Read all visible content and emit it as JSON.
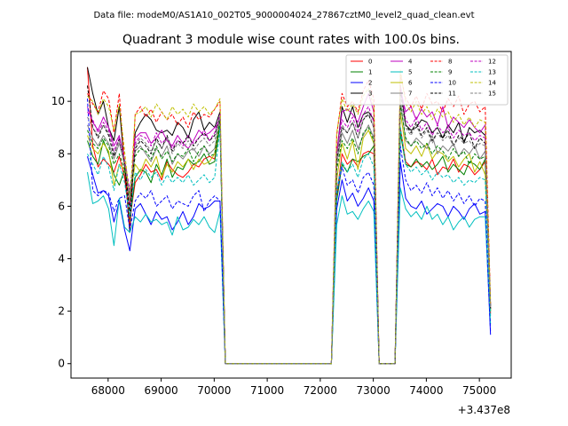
{
  "suptitle": "Data file: modeM0/AS1A10_002T05_9000004024_27867cztM0_level2_quad_clean.evt",
  "chart_data": {
    "type": "line",
    "title": "Quadrant 3 module wise count rates with 100.0s bins.",
    "xlabel": "",
    "ylabel": "",
    "x_offset_label": "+3.437e8",
    "xlim": [
      67300,
      75600
    ],
    "ylim": [
      -0.55,
      11.9
    ],
    "xticks": [
      68000,
      69000,
      70000,
      71000,
      72000,
      73000,
      74000,
      75000
    ],
    "yticks": [
      0,
      2,
      4,
      6,
      8,
      10
    ],
    "legend_position": "top-right",
    "x": [
      67610,
      67710,
      67810,
      67910,
      68010,
      68110,
      68210,
      68310,
      68410,
      68510,
      68610,
      68710,
      68810,
      68910,
      69010,
      69110,
      69210,
      69310,
      69410,
      69510,
      69610,
      69710,
      69810,
      69910,
      70010,
      70110,
      70210,
      70310,
      70410,
      72210,
      72310,
      72410,
      72510,
      72610,
      72710,
      72810,
      72910,
      73010,
      73110,
      73210,
      73310,
      73410,
      73510,
      73610,
      73710,
      73810,
      73910,
      74010,
      74110,
      74210,
      74310,
      74410,
      74510,
      74610,
      74710,
      74810,
      74910,
      75010,
      75110,
      75210
    ],
    "series": [
      {
        "name": "0",
        "color": "#ff0000",
        "dash": "solid",
        "values": [
          11.3,
          8.3,
          7.5,
          7.8,
          7.6,
          7.3,
          7.9,
          7.1,
          5.5,
          6.9,
          7.2,
          7.6,
          7.3,
          7.4,
          7.0,
          7.7,
          7.4,
          7.2,
          7.1,
          7.3,
          7.6,
          7.5,
          7.8,
          7.9,
          7.8,
          9.2,
          0.0,
          0.0,
          0.0,
          0.0,
          6.4,
          8.0,
          7.6,
          7.8,
          7.5,
          8.0,
          8.1,
          8.0,
          0.0,
          0.0,
          0.0,
          0.0,
          9.0,
          7.7,
          7.5,
          7.7,
          7.6,
          7.4,
          7.8,
          7.2,
          7.5,
          7.4,
          7.8,
          7.3,
          7.6,
          7.5,
          7.2,
          7.4,
          7.7,
          1.9
        ]
      },
      {
        "name": "1",
        "color": "#008000",
        "dash": "solid",
        "values": [
          8.5,
          7.9,
          7.6,
          8.5,
          8.0,
          7.2,
          6.8,
          7.4,
          5.5,
          7.1,
          7.4,
          7.3,
          6.9,
          7.6,
          7.2,
          7.8,
          7.1,
          7.5,
          7.4,
          7.8,
          7.6,
          7.7,
          8.0,
          7.6,
          7.7,
          9.1,
          0.0,
          0.0,
          0.0,
          0.0,
          6.2,
          7.6,
          7.3,
          7.8,
          7.7,
          7.9,
          8.0,
          8.3,
          0.0,
          0.0,
          0.0,
          0.0,
          8.8,
          7.6,
          7.5,
          7.8,
          7.5,
          7.7,
          7.4,
          7.6,
          7.9,
          7.3,
          7.6,
          7.4,
          7.2,
          7.7,
          7.6,
          7.4,
          7.8,
          2.0
        ]
      },
      {
        "name": "2",
        "color": "#0000ff",
        "dash": "solid",
        "values": [
          7.9,
          7.2,
          6.5,
          6.6,
          6.4,
          5.4,
          6.2,
          5.1,
          4.3,
          5.9,
          6.1,
          5.7,
          5.3,
          5.8,
          5.5,
          5.6,
          5.1,
          5.4,
          5.8,
          5.3,
          5.6,
          6.1,
          5.9,
          6.0,
          6.2,
          6.2,
          0.0,
          0.0,
          0.0,
          0.0,
          5.9,
          7.0,
          6.2,
          6.5,
          6.0,
          6.3,
          6.7,
          6.2,
          0.0,
          0.0,
          0.0,
          0.0,
          7.7,
          6.3,
          6.0,
          5.9,
          6.2,
          5.7,
          5.9,
          6.1,
          6.0,
          5.6,
          6.0,
          5.8,
          5.5,
          5.9,
          6.1,
          5.7,
          5.8,
          1.1
        ]
      },
      {
        "name": "3",
        "color": "#000000",
        "dash": "solid",
        "values": [
          11.3,
          10.3,
          9.5,
          10.0,
          9.0,
          8.5,
          9.8,
          7.5,
          5.0,
          8.8,
          9.2,
          9.5,
          9.3,
          8.9,
          8.8,
          8.9,
          8.7,
          9.2,
          9.0,
          8.6,
          9.3,
          9.6,
          8.9,
          9.2,
          9.0,
          9.6,
          0.0,
          0.0,
          0.0,
          0.0,
          8.0,
          9.8,
          9.2,
          9.8,
          9.0,
          9.5,
          9.6,
          9.3,
          0.0,
          0.0,
          0.0,
          0.0,
          10.6,
          9.1,
          8.9,
          9.0,
          9.3,
          9.2,
          8.8,
          9.0,
          8.6,
          9.1,
          8.8,
          9.2,
          8.4,
          9.0,
          8.8,
          8.9,
          8.7,
          2.2
        ]
      },
      {
        "name": "4",
        "color": "#bf00bf",
        "dash": "solid",
        "values": [
          9.8,
          9.2,
          8.9,
          9.4,
          9.0,
          8.3,
          8.7,
          7.7,
          6.0,
          8.6,
          8.8,
          8.8,
          8.4,
          8.6,
          8.9,
          8.5,
          8.3,
          8.7,
          8.4,
          8.2,
          8.5,
          8.9,
          8.7,
          8.8,
          9.0,
          9.2,
          0.0,
          0.0,
          0.0,
          0.0,
          8.0,
          9.6,
          9.7,
          9.5,
          9.2,
          9.8,
          10.3,
          9.6,
          0.0,
          0.0,
          0.0,
          0.0,
          10.5,
          9.6,
          9.8,
          9.3,
          9.7,
          9.4,
          9.6,
          9.1,
          9.8,
          9.0,
          9.4,
          9.2,
          9.0,
          9.3,
          9.0,
          8.8,
          9.1,
          2.1
        ]
      },
      {
        "name": "5",
        "color": "#00bfbf",
        "dash": "solid",
        "values": [
          7.3,
          6.1,
          6.2,
          6.4,
          5.9,
          4.5,
          6.3,
          5.2,
          5.0,
          5.6,
          5.4,
          5.7,
          5.4,
          5.5,
          5.3,
          5.4,
          4.9,
          5.6,
          5.1,
          5.2,
          5.5,
          5.3,
          5.6,
          5.2,
          5.0,
          5.8,
          0.0,
          0.0,
          0.0,
          0.0,
          5.3,
          6.4,
          5.7,
          5.8,
          5.5,
          5.9,
          6.2,
          5.8,
          0.0,
          0.0,
          0.0,
          0.0,
          6.7,
          5.9,
          5.6,
          5.8,
          5.5,
          6.0,
          5.5,
          5.7,
          5.3,
          5.6,
          5.1,
          5.4,
          5.6,
          5.2,
          5.5,
          5.6,
          5.6,
          1.5
        ]
      },
      {
        "name": "6",
        "color": "#bfbf00",
        "dash": "solid",
        "values": [
          8.7,
          8.2,
          8.0,
          8.4,
          8.1,
          6.8,
          7.6,
          7.4,
          6.4,
          7.6,
          7.3,
          7.8,
          7.5,
          7.9,
          7.1,
          7.6,
          7.3,
          7.7,
          7.5,
          7.8,
          7.4,
          7.8,
          7.6,
          7.7,
          8.0,
          9.3,
          0.0,
          0.0,
          0.0,
          0.0,
          7.0,
          8.4,
          7.8,
          8.5,
          7.4,
          8.6,
          8.9,
          8.4,
          0.0,
          0.0,
          0.0,
          0.0,
          9.6,
          8.2,
          8.0,
          8.3,
          7.9,
          8.4,
          7.8,
          8.1,
          8.0,
          7.7,
          7.9,
          7.5,
          7.8,
          8.0,
          7.3,
          7.7,
          7.2,
          2.0
        ]
      },
      {
        "name": "7",
        "color": "#808080",
        "dash": "solid",
        "values": [
          9.1,
          8.6,
          8.3,
          8.7,
          8.4,
          7.8,
          8.4,
          7.6,
          6.2,
          8.1,
          8.3,
          8.0,
          7.7,
          8.2,
          7.9,
          8.3,
          7.6,
          8.0,
          7.8,
          8.1,
          8.2,
          7.9,
          8.3,
          8.0,
          8.2,
          9.3,
          0.0,
          0.0,
          0.0,
          0.0,
          7.6,
          8.8,
          8.4,
          8.9,
          8.2,
          8.7,
          9.1,
          8.6,
          0.0,
          0.0,
          0.0,
          0.0,
          10.0,
          8.5,
          8.3,
          8.6,
          8.4,
          8.2,
          8.7,
          8.0,
          8.3,
          8.1,
          8.4,
          7.9,
          8.2,
          8.0,
          8.3,
          7.8,
          8.1,
          2.1
        ]
      },
      {
        "name": "8",
        "color": "#ff0000",
        "dash": "dashed",
        "values": [
          10.3,
          9.9,
          9.6,
          10.4,
          10.1,
          8.8,
          10.3,
          7.6,
          5.2,
          9.5,
          9.8,
          9.4,
          9.7,
          9.2,
          9.6,
          9.3,
          9.5,
          9.1,
          9.4,
          9.0,
          9.6,
          9.3,
          9.5,
          9.4,
          9.7,
          10.0,
          0.0,
          0.0,
          0.0,
          0.0,
          8.7,
          10.3,
          9.8,
          10.0,
          9.6,
          10.4,
          10.8,
          10.1,
          0.0,
          0.0,
          0.0,
          0.0,
          11.0,
          10.1,
          9.8,
          10.2,
          9.7,
          10.3,
          9.9,
          10.0,
          9.6,
          10.1,
          9.8,
          10.2,
          9.5,
          9.9,
          10.0,
          9.6,
          9.8,
          2.3
        ]
      },
      {
        "name": "9",
        "color": "#008000",
        "dash": "dashed",
        "values": [
          8.9,
          8.4,
          8.2,
          8.6,
          8.3,
          7.6,
          8.0,
          7.4,
          6.5,
          7.9,
          8.2,
          8.1,
          7.8,
          8.3,
          7.8,
          8.1,
          7.7,
          8.0,
          7.9,
          8.2,
          7.7,
          8.1,
          8.3,
          7.9,
          8.0,
          9.3,
          0.0,
          0.0,
          0.0,
          0.0,
          7.4,
          8.5,
          8.2,
          8.6,
          8.0,
          8.8,
          9.0,
          8.5,
          0.0,
          0.0,
          0.0,
          0.0,
          9.9,
          8.6,
          8.3,
          8.5,
          8.2,
          8.4,
          8.0,
          8.3,
          8.1,
          7.8,
          8.2,
          7.9,
          8.1,
          7.6,
          8.0,
          7.8,
          7.9,
          2.1
        ]
      },
      {
        "name": "10",
        "color": "#0000ff",
        "dash": "dashed",
        "values": [
          10.1,
          6.6,
          6.4,
          6.6,
          6.5,
          5.8,
          6.3,
          6.4,
          5.1,
          6.2,
          6.5,
          6.3,
          6.6,
          6.0,
          6.2,
          6.4,
          5.9,
          6.2,
          6.1,
          6.0,
          6.4,
          6.6,
          5.8,
          6.2,
          6.4,
          6.2,
          0.0,
          0.0,
          0.0,
          0.0,
          6.5,
          7.5,
          6.8,
          7.0,
          6.5,
          7.1,
          7.3,
          6.8,
          0.0,
          0.0,
          0.0,
          0.0,
          8.3,
          7.0,
          6.6,
          6.8,
          6.5,
          6.9,
          6.4,
          6.7,
          6.3,
          6.6,
          6.2,
          6.5,
          6.1,
          6.4,
          6.0,
          6.3,
          6.2,
          1.2
        ]
      },
      {
        "name": "11",
        "color": "#000000",
        "dash": "dashed",
        "values": [
          10.6,
          9.0,
          8.6,
          9.1,
          8.7,
          7.9,
          8.6,
          7.6,
          5.8,
          8.2,
          8.5,
          8.3,
          8.0,
          8.6,
          8.2,
          8.7,
          8.1,
          8.5,
          8.4,
          8.7,
          8.3,
          8.6,
          8.8,
          8.5,
          8.7,
          9.4,
          0.0,
          0.0,
          0.0,
          0.0,
          7.8,
          9.0,
          8.8,
          9.2,
          8.6,
          9.3,
          9.5,
          9.0,
          0.0,
          0.0,
          0.0,
          0.0,
          10.4,
          9.1,
          8.8,
          9.2,
          8.7,
          9.0,
          8.5,
          8.8,
          8.6,
          8.9,
          8.3,
          8.7,
          8.5,
          8.8,
          8.2,
          8.6,
          8.4,
          2.1
        ]
      },
      {
        "name": "12",
        "color": "#bf00bf",
        "dash": "dashed",
        "values": [
          9.6,
          9.3,
          8.8,
          9.2,
          8.9,
          8.1,
          8.6,
          7.8,
          6.6,
          8.4,
          8.7,
          8.6,
          8.3,
          8.8,
          8.4,
          8.6,
          8.2,
          8.5,
          8.3,
          8.7,
          8.4,
          8.6,
          8.9,
          8.5,
          8.8,
          9.5,
          0.0,
          0.0,
          0.0,
          0.0,
          8.1,
          9.3,
          9.0,
          9.4,
          8.8,
          9.5,
          9.8,
          9.2,
          0.0,
          0.0,
          0.0,
          0.0,
          10.6,
          9.3,
          9.0,
          9.4,
          8.9,
          9.2,
          8.7,
          9.1,
          8.8,
          9.0,
          8.6,
          8.9,
          8.7,
          8.8,
          8.5,
          8.7,
          8.6,
          2.2
        ]
      },
      {
        "name": "13",
        "color": "#00bfbf",
        "dash": "dashed",
        "values": [
          8.0,
          7.6,
          7.2,
          7.9,
          7.5,
          6.6,
          7.6,
          6.9,
          5.6,
          7.3,
          7.0,
          7.4,
          7.1,
          7.3,
          6.8,
          7.2,
          6.9,
          7.1,
          6.9,
          7.2,
          6.8,
          7.0,
          7.2,
          6.9,
          7.1,
          9.0,
          0.0,
          0.0,
          0.0,
          0.0,
          6.6,
          7.7,
          7.3,
          7.6,
          7.1,
          7.8,
          8.0,
          7.5,
          0.0,
          0.0,
          0.0,
          0.0,
          9.0,
          7.6,
          7.3,
          7.5,
          7.2,
          7.4,
          7.0,
          7.3,
          7.1,
          7.2,
          6.9,
          7.1,
          6.8,
          7.0,
          6.9,
          7.1,
          7.0,
          1.8
        ]
      },
      {
        "name": "14",
        "color": "#bfbf00",
        "dash": "dashed",
        "values": [
          10.2,
          10.0,
          9.5,
          10.1,
          9.8,
          8.9,
          9.9,
          8.1,
          6.2,
          9.5,
          9.6,
          9.8,
          9.4,
          9.9,
          9.6,
          9.3,
          9.8,
          9.5,
          9.7,
          9.4,
          9.9,
          9.6,
          9.8,
          9.5,
          9.7,
          10.1,
          0.0,
          0.0,
          0.0,
          0.0,
          8.8,
          10.1,
          9.6,
          9.9,
          9.5,
          10.2,
          10.5,
          9.8,
          0.0,
          0.0,
          0.0,
          0.0,
          11.2,
          9.9,
          9.6,
          10.0,
          9.5,
          9.8,
          9.3,
          9.7,
          9.4,
          9.6,
          9.2,
          9.5,
          9.1,
          9.4,
          9.0,
          9.3,
          9.2,
          2.3
        ]
      },
      {
        "name": "15",
        "color": "#808080",
        "dash": "dashed",
        "values": [
          9.4,
          9.0,
          8.7,
          9.1,
          8.8,
          8.0,
          8.5,
          7.7,
          6.3,
          8.3,
          8.6,
          8.4,
          8.1,
          8.5,
          8.2,
          8.6,
          8.0,
          8.4,
          8.2,
          8.5,
          8.1,
          8.4,
          8.6,
          8.3,
          8.5,
          9.4,
          0.0,
          0.0,
          0.0,
          0.0,
          7.9,
          9.1,
          8.8,
          9.2,
          8.6,
          9.3,
          9.6,
          9.0,
          0.0,
          0.0,
          0.0,
          0.0,
          10.2,
          9.0,
          8.7,
          9.1,
          8.6,
          8.9,
          8.4,
          8.8,
          8.5,
          8.7,
          8.3,
          8.6,
          8.4,
          8.5,
          8.2,
          8.4,
          8.3,
          2.1
        ]
      }
    ]
  }
}
